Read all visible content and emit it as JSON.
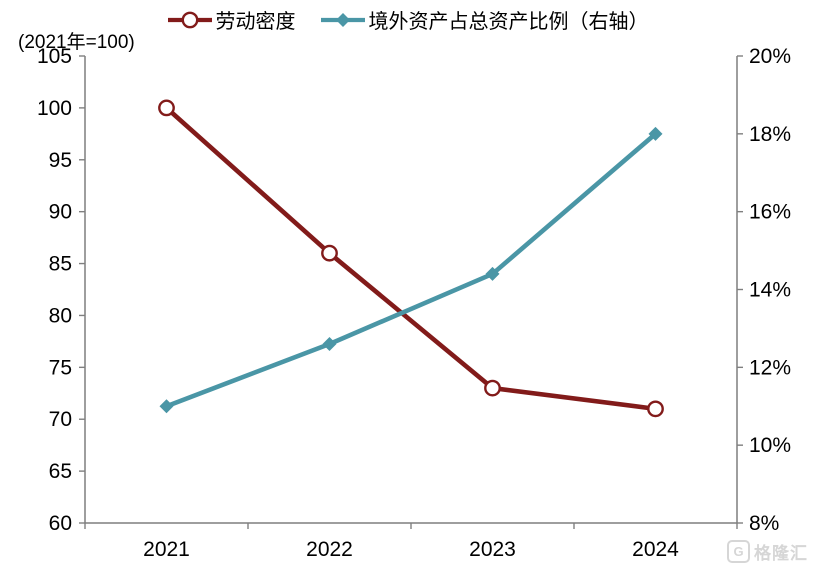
{
  "chart_data": {
    "type": "line",
    "title": "",
    "categories": [
      "2021",
      "2022",
      "2023",
      "2024"
    ],
    "series": [
      {
        "name": "劳动密度",
        "axis": "left",
        "marker": "open-circle",
        "color": "#821B1A",
        "values": [
          100,
          86,
          73,
          71
        ]
      },
      {
        "name": "境外资产占总资产比例（右轴）",
        "axis": "right",
        "marker": "diamond",
        "color": "#4A96A6",
        "values": [
          11.0,
          12.6,
          14.4,
          18.0
        ]
      }
    ],
    "left_axis": {
      "label": "(2021年=100)",
      "min": 60,
      "max": 105,
      "step": 5,
      "tick_labels": [
        "105",
        "100",
        "95",
        "90",
        "85",
        "80",
        "75",
        "70",
        "65",
        "60"
      ]
    },
    "right_axis": {
      "min": 8,
      "max": 20,
      "step": 2,
      "tick_labels": [
        "20%",
        "18%",
        "16%",
        "14%",
        "12%",
        "10%",
        "8%"
      ]
    },
    "legend_position": "top",
    "grid": false,
    "axis_color": "#7f7f7f",
    "tick_label_color": "#000000"
  },
  "watermark": {
    "logo_letter": "G",
    "text": "格隆汇"
  }
}
